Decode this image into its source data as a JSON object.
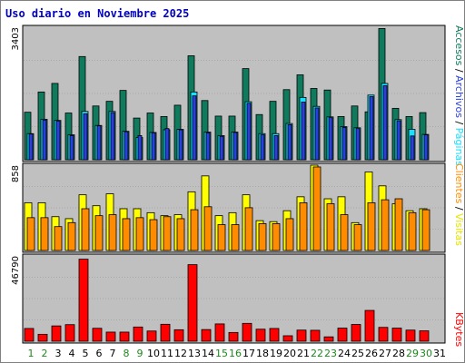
{
  "chart_data": [
    {
      "type": "bar",
      "title": "Uso diario en Noviembre 2025",
      "categories": [
        "1",
        "2",
        "3",
        "4",
        "5",
        "6",
        "7",
        "8",
        "9",
        "10",
        "11",
        "12",
        "13",
        "14",
        "15",
        "16",
        "17",
        "18",
        "19",
        "20",
        "21",
        "22",
        "23",
        "24",
        "25",
        "26",
        "27",
        "28",
        "29",
        "30",
        "31"
      ],
      "weekend_days": [
        "1",
        "2",
        "8",
        "9",
        "15",
        "16",
        "22",
        "23",
        "29",
        "30"
      ],
      "ymax_label": "3403",
      "ylim": [
        0,
        3403
      ],
      "series": [
        {
          "name": "Accesos",
          "color": "#0f7a5c",
          "values": [
            1220,
            1740,
            1960,
            1200,
            2650,
            1380,
            1500,
            1780,
            1070,
            1200,
            1110,
            1400,
            2670,
            1520,
            1120,
            1120,
            2340,
            1160,
            1500,
            1800,
            2180,
            1830,
            1790,
            1110,
            1380,
            1230,
            3370,
            1320,
            1110,
            1210,
            0
          ]
        },
        {
          "name": "Páginas",
          "color": "#18e0ff",
          "values": [
            670,
            1040,
            1010,
            640,
            1240,
            880,
            1240,
            730,
            570,
            700,
            770,
            780,
            1740,
            710,
            620,
            710,
            1490,
            670,
            670,
            930,
            1600,
            1370,
            1100,
            850,
            820,
            1660,
            1960,
            1030,
            780,
            650,
            0
          ]
        },
        {
          "name": "Archivos",
          "color": "#2a3fe0",
          "values": [
            660,
            1020,
            990,
            620,
            1180,
            870,
            1210,
            720,
            620,
            690,
            800,
            770,
            1640,
            690,
            600,
            700,
            1450,
            640,
            620,
            900,
            1480,
            1330,
            1080,
            830,
            800,
            1620,
            1900,
            1000,
            610,
            640,
            0
          ]
        }
      ]
    },
    {
      "type": "bar",
      "categories": [
        "1",
        "2",
        "3",
        "4",
        "5",
        "6",
        "7",
        "8",
        "9",
        "10",
        "11",
        "12",
        "13",
        "14",
        "15",
        "16",
        "17",
        "18",
        "19",
        "20",
        "21",
        "22",
        "23",
        "24",
        "25",
        "26",
        "27",
        "28",
        "29",
        "30",
        "31"
      ],
      "ymax_label": "858",
      "ylim": [
        0,
        858
      ],
      "series": [
        {
          "name": "Visitas",
          "color": "#ffff00",
          "values": [
            480,
            480,
            340,
            320,
            560,
            450,
            570,
            420,
            420,
            380,
            350,
            360,
            590,
            750,
            350,
            380,
            560,
            300,
            290,
            400,
            540,
            858,
            520,
            540,
            280,
            790,
            650,
            470,
            400,
            420,
            0
          ]
        },
        {
          "name": "Clientes",
          "color": "#ff8c00",
          "values": [
            330,
            330,
            240,
            280,
            420,
            350,
            360,
            320,
            330,
            310,
            340,
            320,
            410,
            440,
            260,
            260,
            430,
            270,
            270,
            320,
            480,
            840,
            470,
            360,
            260,
            480,
            510,
            520,
            380,
            410,
            0
          ]
        }
      ]
    },
    {
      "type": "bar",
      "categories": [
        "1",
        "2",
        "3",
        "4",
        "5",
        "6",
        "7",
        "8",
        "9",
        "10",
        "11",
        "12",
        "13",
        "14",
        "15",
        "16",
        "17",
        "18",
        "19",
        "20",
        "21",
        "22",
        "23",
        "24",
        "25",
        "26",
        "27",
        "28",
        "29",
        "30",
        "31"
      ],
      "ymax_label": "46790",
      "ylim": [
        0,
        46790
      ],
      "series": [
        {
          "name": "KBytes",
          "color": "#ff0000",
          "values": [
            7000,
            3800,
            8400,
            9100,
            45000,
            7100,
            5000,
            5000,
            7800,
            5600,
            9300,
            6300,
            42000,
            6400,
            9500,
            4800,
            9800,
            6600,
            7000,
            3000,
            6100,
            6000,
            2400,
            7200,
            9200,
            16900,
            7600,
            7200,
            6100,
            5700,
            0
          ]
        }
      ]
    }
  ],
  "legend": {
    "top_chart": [
      "Accesos",
      "Páginas",
      "Archivos"
    ],
    "middle_chart": [
      "Visitas",
      "Clientes"
    ],
    "bottom_chart": [
      "KBytes"
    ],
    "separator": " / "
  },
  "colors": {
    "panel_bg": "#c0c0c0",
    "frame_bg": "#ffffff",
    "title": "#0000c0",
    "weekday_label": "#000000",
    "weekend_label": "#1a8a1a"
  }
}
